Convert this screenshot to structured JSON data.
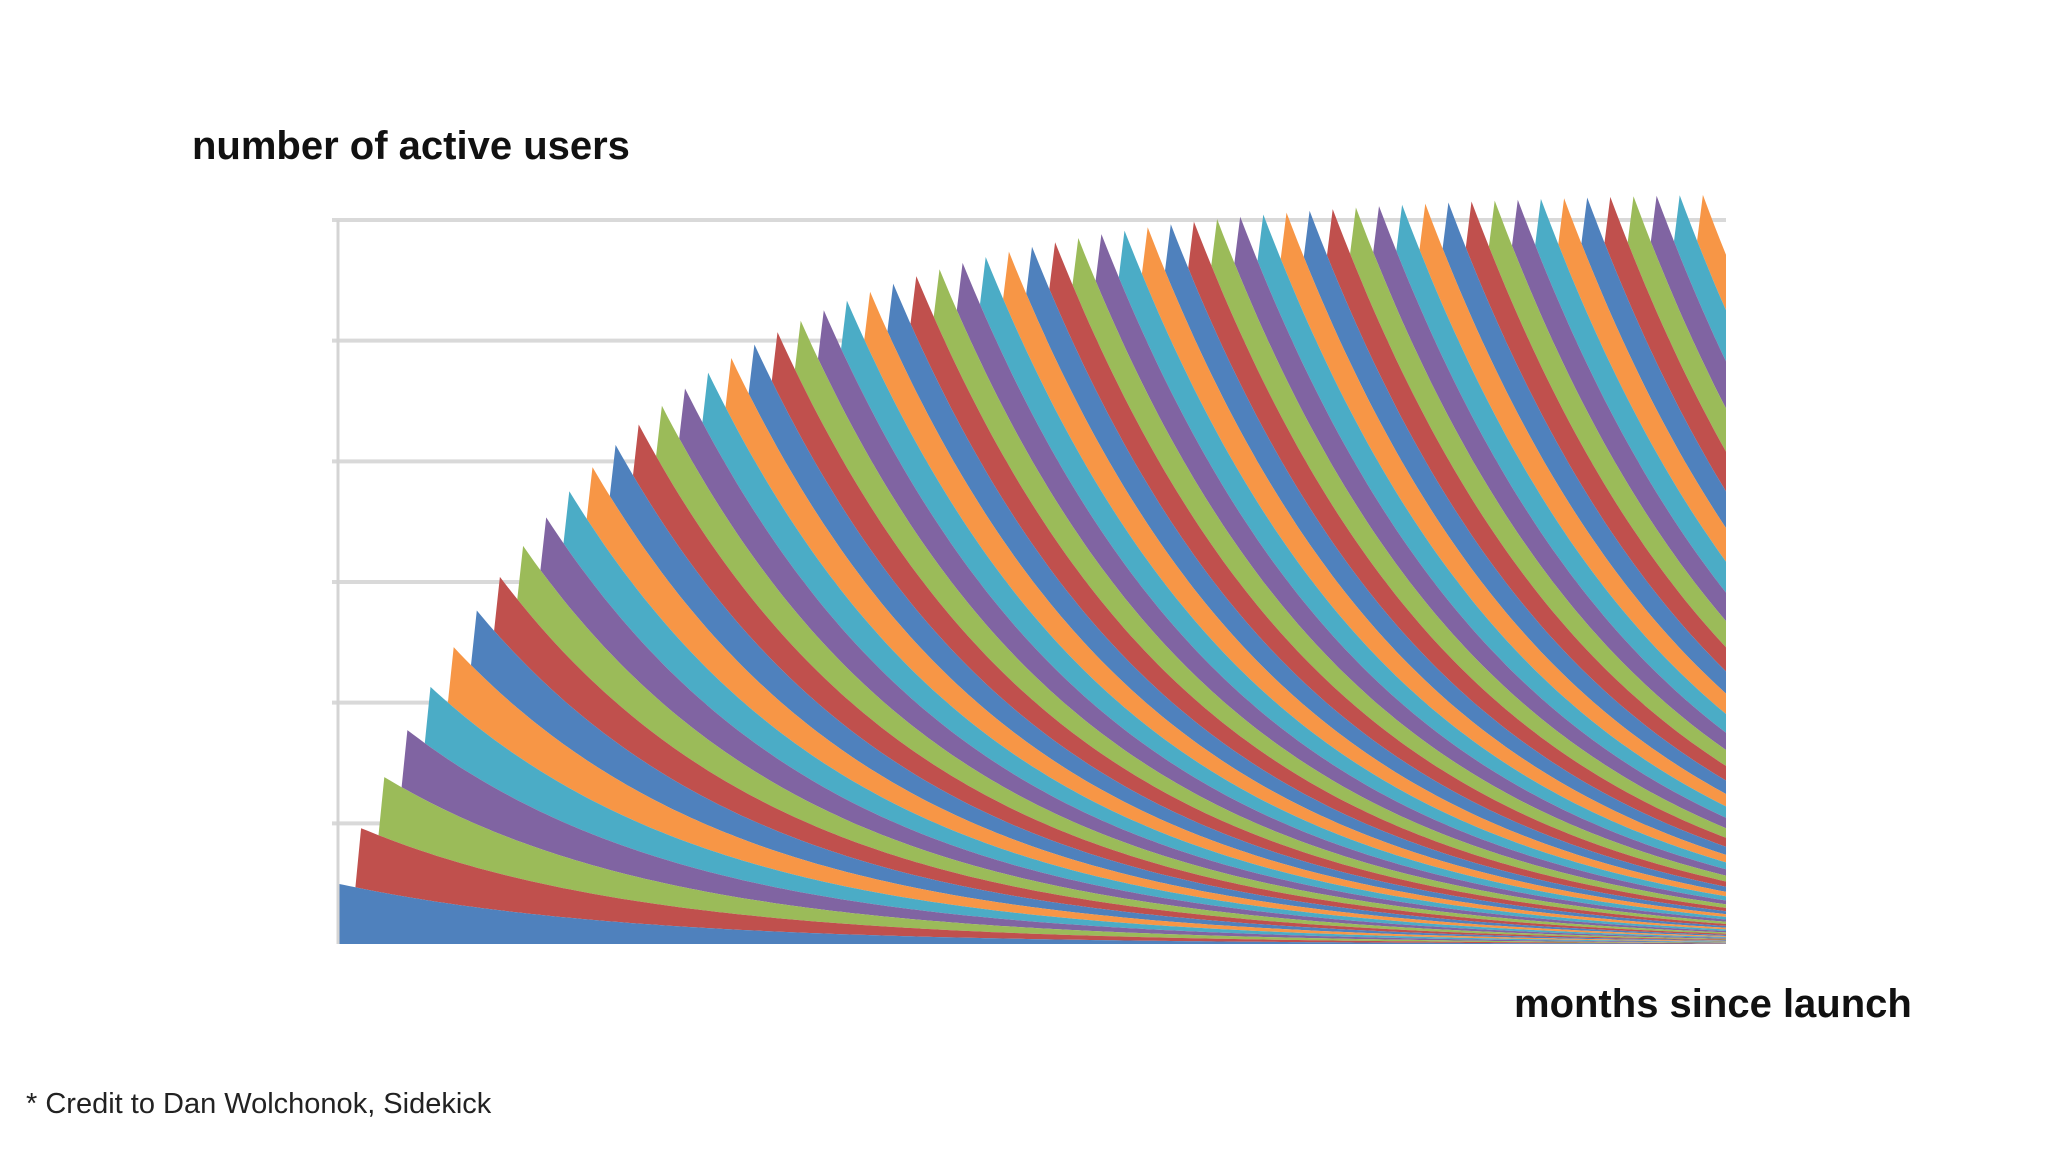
{
  "chart_data": {
    "type": "area",
    "stacked": true,
    "title": "",
    "ylabel": "number of active users",
    "xlabel": "months since launch",
    "ylim": [
      0,
      6
    ],
    "xlim": [
      0,
      60
    ],
    "grid": true,
    "y_ticks": [
      0,
      1,
      2,
      3,
      4,
      5,
      6
    ],
    "num_cohorts": 60,
    "new_users_per_month": 0.5,
    "monthly_retention": 0.92,
    "total_active_users": [
      0.5,
      0.96,
      1.38,
      1.77,
      2.13,
      2.46,
      2.76,
      3.04,
      3.3,
      3.54,
      3.76,
      3.96,
      4.14,
      4.31,
      4.47,
      4.61,
      4.74,
      4.86,
      4.97,
      5.07,
      5.16,
      5.25,
      5.33,
      5.4,
      5.47,
      5.53,
      5.59,
      5.64,
      5.69,
      5.73,
      5.77,
      5.81,
      5.84,
      5.87,
      5.9,
      5.93,
      5.95,
      5.97,
      5.99,
      6.01,
      6.03,
      6.04,
      6.05,
      6.06,
      6.07,
      6.08,
      6.09,
      6.1,
      6.11,
      6.12,
      6.13,
      6.14,
      6.15,
      6.16,
      6.17,
      6.18,
      6.19,
      6.2,
      6.21,
      6.22
    ],
    "palette": [
      "#4f81bd",
      "#c0504d",
      "#9bbb59",
      "#8064a2",
      "#4bacc6",
      "#f79646"
    ]
  },
  "footer": {
    "credit": "* Credit to Dan Wolchonok, Sidekick"
  }
}
